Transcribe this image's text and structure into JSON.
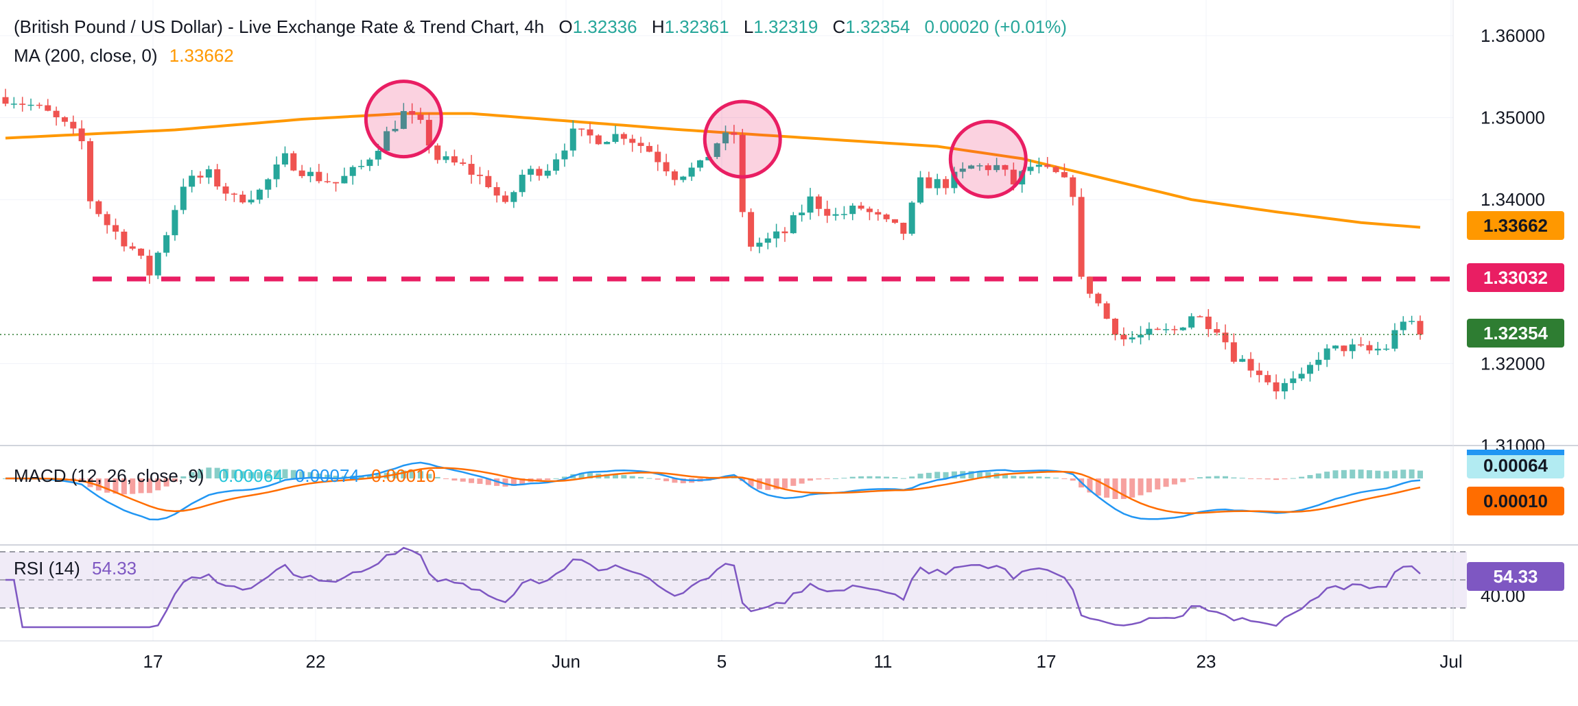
{
  "header": {
    "title": "(British Pound / US Dollar) - Live Exchange Rate & Trend Chart, 4h",
    "o_label": "O",
    "o_value": "1.32336",
    "h_label": "H",
    "h_value": "1.32361",
    "l_label": "L",
    "l_value": "1.32319",
    "c_label": "C",
    "c_value": "1.32354",
    "change": "0.00020 (+0.01%)",
    "ma_label": "MA (200, close, 0)",
    "ma_value": "1.33662"
  },
  "macd_header": {
    "label": "MACD (12, 26, close, 9)",
    "hist_value": "0.00064",
    "macd_value": "0.00074",
    "signal_value": "0.00010"
  },
  "rsi_header": {
    "label": "RSI (14)",
    "value": "54.33"
  },
  "price_badges": {
    "ma": "1.33662",
    "support": "1.33032",
    "last": "1.32354",
    "macd": "0.00064",
    "signal": "0.00010",
    "rsi": "54.33"
  },
  "colors": {
    "up": "#26a69a",
    "down": "#ef5350",
    "ma": "#ff9800",
    "support": "#e91e63",
    "macd": "#2196f3",
    "signal": "#ff6d00",
    "rsi": "#7e57c2",
    "last_badge": "#2e7d32"
  },
  "chart_data": [
    {
      "type": "candlestick",
      "title": "(British Pound / US Dollar) - Live Exchange Rate & Trend Chart, 4h",
      "y_axis_ticks": [
        "1.36000",
        "1.35000",
        "1.34000",
        "1.32000",
        "1.31000"
      ],
      "x_axis_ticks": [
        "17",
        "22",
        "Jun",
        "5",
        "11",
        "17",
        "23",
        "Jul"
      ],
      "ylim": [
        1.31,
        1.36
      ],
      "support_level": 1.33032,
      "last_price": 1.32354,
      "ma200_value": 1.33662,
      "price_path": [
        [
          0,
          1.3525
        ],
        [
          3,
          1.3515
        ],
        [
          5,
          1.3505
        ],
        [
          7,
          1.349
        ],
        [
          9,
          1.347
        ],
        [
          10,
          1.34
        ],
        [
          12,
          1.337
        ],
        [
          15,
          1.334
        ],
        [
          17,
          1.331
        ],
        [
          19,
          1.336
        ],
        [
          21,
          1.342
        ],
        [
          24,
          1.343
        ],
        [
          27,
          1.34
        ],
        [
          30,
          1.341
        ],
        [
          33,
          1.345
        ],
        [
          36,
          1.343
        ],
        [
          39,
          1.342
        ],
        [
          42,
          1.344
        ],
        [
          45,
          1.348
        ],
        [
          47,
          1.3505
        ],
        [
          49,
          1.349
        ],
        [
          51,
          1.345
        ],
        [
          54,
          1.344
        ],
        [
          57,
          1.342
        ],
        [
          59,
          1.339
        ],
        [
          61,
          1.343
        ],
        [
          64,
          1.344
        ],
        [
          67,
          1.348
        ],
        [
          70,
          1.3475
        ],
        [
          73,
          1.348
        ],
        [
          76,
          1.346
        ],
        [
          79,
          1.343
        ],
        [
          82,
          1.344
        ],
        [
          84,
          1.347
        ],
        [
          86,
          1.348
        ],
        [
          87,
          1.338
        ],
        [
          88,
          1.3345
        ],
        [
          90,
          1.335
        ],
        [
          92,
          1.336
        ],
        [
          95,
          1.34
        ],
        [
          98,
          1.338
        ],
        [
          101,
          1.339
        ],
        [
          104,
          1.337
        ],
        [
          106,
          1.336
        ],
        [
          108,
          1.342
        ],
        [
          111,
          1.342
        ],
        [
          114,
          1.344
        ],
        [
          117,
          1.344
        ],
        [
          119,
          1.342
        ],
        [
          121,
          1.344
        ],
        [
          124,
          1.343
        ],
        [
          126,
          1.341
        ],
        [
          127,
          1.33
        ],
        [
          128,
          1.329
        ],
        [
          130,
          1.3255
        ],
        [
          132,
          1.323
        ],
        [
          135,
          1.3235
        ],
        [
          138,
          1.324
        ],
        [
          140,
          1.326
        ],
        [
          143,
          1.3245
        ],
        [
          145,
          1.321
        ],
        [
          148,
          1.319
        ],
        [
          150,
          1.317
        ],
        [
          153,
          1.318
        ],
        [
          155,
          1.321
        ],
        [
          158,
          1.322
        ],
        [
          161,
          1.3215
        ],
        [
          163,
          1.322
        ],
        [
          165,
          1.3255
        ],
        [
          166,
          1.3245
        ],
        [
          167,
          1.32354
        ]
      ],
      "ma200_path": [
        [
          0,
          1.3475
        ],
        [
          20,
          1.3485
        ],
        [
          35,
          1.3498
        ],
        [
          47,
          1.3505
        ],
        [
          55,
          1.3505
        ],
        [
          65,
          1.3497
        ],
        [
          80,
          1.3485
        ],
        [
          95,
          1.3475
        ],
        [
          110,
          1.3465
        ],
        [
          120,
          1.345
        ],
        [
          130,
          1.3425
        ],
        [
          140,
          1.34
        ],
        [
          150,
          1.3385
        ],
        [
          160,
          1.3372
        ],
        [
          167,
          1.33662
        ]
      ],
      "resistance_circles_at": [
        47,
        87,
        116
      ]
    },
    {
      "type": "line",
      "title": "MACD (12, 26, close, 9)",
      "series": [
        {
          "name": "MACD",
          "last_value": 0.00074
        },
        {
          "name": "Signal",
          "last_value": 0.0001
        },
        {
          "name": "Histogram",
          "last_value": 0.00064
        }
      ]
    },
    {
      "type": "line",
      "title": "RSI (14)",
      "y_axis_ticks": [
        "40.00"
      ],
      "series": [
        {
          "name": "RSI",
          "last_value": 54.33
        }
      ]
    }
  ]
}
